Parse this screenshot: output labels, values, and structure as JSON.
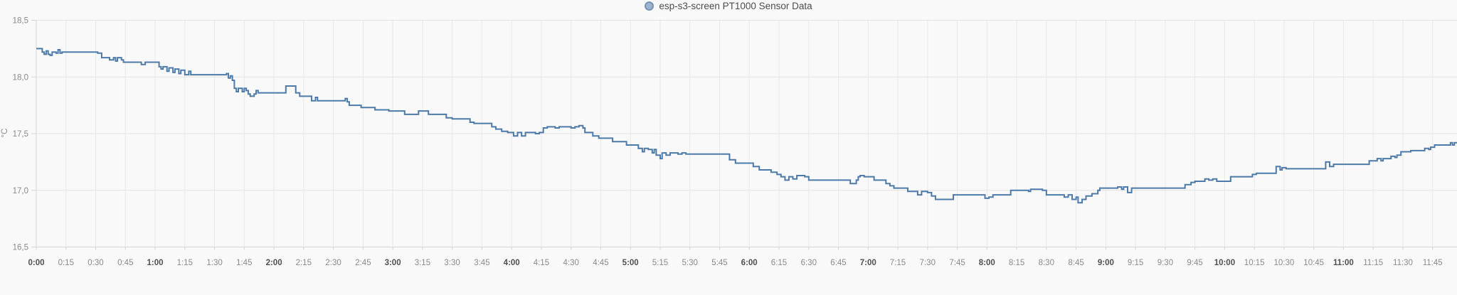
{
  "legend": {
    "series_label": "esp-s3-screen PT1000 Sensor Data",
    "marker_fill": "#9cb4ce",
    "marker_border": "#7694b5"
  },
  "y_axis": {
    "title": "°C",
    "ticks": [
      {
        "label": "18,5",
        "value": 18.5
      },
      {
        "label": "18,0",
        "value": 18.0
      },
      {
        "label": "17,5",
        "value": 17.5
      },
      {
        "label": "17,0",
        "value": 17.0
      },
      {
        "label": "16,5",
        "value": 16.5
      }
    ]
  },
  "x_axis": {
    "ticks": [
      {
        "label": "0:00",
        "m": 0,
        "bold": true
      },
      {
        "label": "0:15",
        "m": 15,
        "bold": false
      },
      {
        "label": "0:30",
        "m": 30,
        "bold": false
      },
      {
        "label": "0:45",
        "m": 45,
        "bold": false
      },
      {
        "label": "1:00",
        "m": 60,
        "bold": true
      },
      {
        "label": "1:15",
        "m": 75,
        "bold": false
      },
      {
        "label": "1:30",
        "m": 90,
        "bold": false
      },
      {
        "label": "1:45",
        "m": 105,
        "bold": false
      },
      {
        "label": "2:00",
        "m": 120,
        "bold": true
      },
      {
        "label": "2:15",
        "m": 135,
        "bold": false
      },
      {
        "label": "2:30",
        "m": 150,
        "bold": false
      },
      {
        "label": "2:45",
        "m": 165,
        "bold": false
      },
      {
        "label": "3:00",
        "m": 180,
        "bold": true
      },
      {
        "label": "3:15",
        "m": 195,
        "bold": false
      },
      {
        "label": "3:30",
        "m": 210,
        "bold": false
      },
      {
        "label": "3:45",
        "m": 225,
        "bold": false
      },
      {
        "label": "4:00",
        "m": 240,
        "bold": true
      },
      {
        "label": "4:15",
        "m": 255,
        "bold": false
      },
      {
        "label": "4:30",
        "m": 270,
        "bold": false
      },
      {
        "label": "4:45",
        "m": 285,
        "bold": false
      },
      {
        "label": "5:00",
        "m": 300,
        "bold": true
      },
      {
        "label": "5:15",
        "m": 315,
        "bold": false
      },
      {
        "label": "5:30",
        "m": 330,
        "bold": false
      },
      {
        "label": "5:45",
        "m": 345,
        "bold": false
      },
      {
        "label": "6:00",
        "m": 360,
        "bold": true
      },
      {
        "label": "6:15",
        "m": 375,
        "bold": false
      },
      {
        "label": "6:30",
        "m": 390,
        "bold": false
      },
      {
        "label": "6:45",
        "m": 405,
        "bold": false
      },
      {
        "label": "7:00",
        "m": 420,
        "bold": true
      },
      {
        "label": "7:15",
        "m": 435,
        "bold": false
      },
      {
        "label": "7:30",
        "m": 450,
        "bold": false
      },
      {
        "label": "7:45",
        "m": 465,
        "bold": false
      },
      {
        "label": "8:00",
        "m": 480,
        "bold": true
      },
      {
        "label": "8:15",
        "m": 495,
        "bold": false
      },
      {
        "label": "8:30",
        "m": 510,
        "bold": false
      },
      {
        "label": "8:45",
        "m": 525,
        "bold": false
      },
      {
        "label": "9:00",
        "m": 540,
        "bold": true
      },
      {
        "label": "9:15",
        "m": 555,
        "bold": false
      },
      {
        "label": "9:30",
        "m": 570,
        "bold": false
      },
      {
        "label": "9:45",
        "m": 585,
        "bold": false
      },
      {
        "label": "10:00",
        "m": 600,
        "bold": true
      },
      {
        "label": "10:15",
        "m": 615,
        "bold": false
      },
      {
        "label": "10:30",
        "m": 630,
        "bold": false
      },
      {
        "label": "10:45",
        "m": 645,
        "bold": false
      },
      {
        "label": "11:00",
        "m": 660,
        "bold": true
      },
      {
        "label": "11:15",
        "m": 675,
        "bold": false
      },
      {
        "label": "11:30",
        "m": 690,
        "bold": false
      },
      {
        "label": "11:45",
        "m": 705,
        "bold": false
      }
    ]
  },
  "colors": {
    "background": "#f9f9f9",
    "line": "#4d7aa8",
    "grid_h": "#e3e3e3",
    "grid_v": "#e9e9e9",
    "axis": "#d6d6d6",
    "tick_mark": "#d6d6d6",
    "minor_label": "#8a8a8a",
    "hour_label": "#4f4f4f"
  },
  "chart_data": {
    "type": "line",
    "step": "after",
    "title": "esp-s3-screen PT1000 Sensor Data",
    "xlabel": "",
    "ylabel": "°C",
    "ylim": [
      16.5,
      18.5
    ],
    "x_unit": "minutes_since_0:00",
    "xlim": [
      0,
      717
    ],
    "grid": true,
    "legend_position": "top-center",
    "series": [
      {
        "name": "esp-s3-screen PT1000 Sensor Data",
        "color": "#4d7aa8",
        "points": [
          [
            0,
            18.25
          ],
          [
            2,
            18.25
          ],
          [
            3,
            18.22
          ],
          [
            4,
            18.2
          ],
          [
            5,
            18.23
          ],
          [
            6,
            18.2
          ],
          [
            7,
            18.19
          ],
          [
            8,
            18.22
          ],
          [
            10,
            18.21
          ],
          [
            11,
            18.24
          ],
          [
            12,
            18.21
          ],
          [
            13,
            18.22
          ],
          [
            30,
            18.22
          ],
          [
            31,
            18.21
          ],
          [
            33,
            18.17
          ],
          [
            36,
            18.17
          ],
          [
            37,
            18.15
          ],
          [
            39,
            18.17
          ],
          [
            40,
            18.14
          ],
          [
            41,
            18.17
          ],
          [
            43,
            18.15
          ],
          [
            44,
            18.13
          ],
          [
            52,
            18.13
          ],
          [
            53,
            18.11
          ],
          [
            55,
            18.13
          ],
          [
            61,
            18.13
          ],
          [
            62,
            18.09
          ],
          [
            63,
            18.07
          ],
          [
            64,
            18.09
          ],
          [
            66,
            18.05
          ],
          [
            67,
            18.08
          ],
          [
            69,
            18.04
          ],
          [
            70,
            18.07
          ],
          [
            72,
            18.03
          ],
          [
            73,
            18.06
          ],
          [
            75,
            18.02
          ],
          [
            77,
            18.05
          ],
          [
            78,
            18.02
          ],
          [
            95,
            18.02
          ],
          [
            96,
            18.03
          ],
          [
            97,
            17.99
          ],
          [
            98,
            18.01
          ],
          [
            99,
            17.97
          ],
          [
            100,
            17.9
          ],
          [
            101,
            17.87
          ],
          [
            102,
            17.9
          ],
          [
            104,
            17.87
          ],
          [
            105,
            17.9
          ],
          [
            106,
            17.88
          ],
          [
            107,
            17.85
          ],
          [
            108,
            17.83
          ],
          [
            110,
            17.85
          ],
          [
            111,
            17.88
          ],
          [
            112,
            17.86
          ],
          [
            125,
            17.86
          ],
          [
            126,
            17.92
          ],
          [
            130,
            17.92
          ],
          [
            131,
            17.86
          ],
          [
            133,
            17.83
          ],
          [
            138,
            17.83
          ],
          [
            139,
            17.79
          ],
          [
            141,
            17.82
          ],
          [
            142,
            17.79
          ],
          [
            155,
            17.79
          ],
          [
            156,
            17.81
          ],
          [
            157,
            17.78
          ],
          [
            158,
            17.75
          ],
          [
            163,
            17.75
          ],
          [
            164,
            17.73
          ],
          [
            170,
            17.73
          ],
          [
            171,
            17.71
          ],
          [
            178,
            17.7
          ],
          [
            185,
            17.7
          ],
          [
            186,
            17.67
          ],
          [
            192,
            17.67
          ],
          [
            193,
            17.7
          ],
          [
            197,
            17.7
          ],
          [
            198,
            17.67
          ],
          [
            206,
            17.67
          ],
          [
            207,
            17.64
          ],
          [
            210,
            17.63
          ],
          [
            218,
            17.63
          ],
          [
            219,
            17.6
          ],
          [
            221,
            17.59
          ],
          [
            229,
            17.59
          ],
          [
            230,
            17.56
          ],
          [
            232,
            17.54
          ],
          [
            235,
            17.52
          ],
          [
            238,
            17.51
          ],
          [
            240,
            17.51
          ],
          [
            241,
            17.48
          ],
          [
            243,
            17.51
          ],
          [
            245,
            17.48
          ],
          [
            247,
            17.51
          ],
          [
            252,
            17.5
          ],
          [
            254,
            17.51
          ],
          [
            256,
            17.55
          ],
          [
            258,
            17.56
          ],
          [
            262,
            17.55
          ],
          [
            264,
            17.56
          ],
          [
            270,
            17.55
          ],
          [
            272,
            17.56
          ],
          [
            274,
            17.57
          ],
          [
            276,
            17.55
          ],
          [
            277,
            17.51
          ],
          [
            280,
            17.51
          ],
          [
            281,
            17.48
          ],
          [
            284,
            17.46
          ],
          [
            290,
            17.46
          ],
          [
            291,
            17.43
          ],
          [
            297,
            17.43
          ],
          [
            298,
            17.4
          ],
          [
            303,
            17.4
          ],
          [
            304,
            17.37
          ],
          [
            306,
            17.34
          ],
          [
            307,
            17.37
          ],
          [
            309,
            17.36
          ],
          [
            311,
            17.33
          ],
          [
            312,
            17.36
          ],
          [
            313,
            17.31
          ],
          [
            315,
            17.28
          ],
          [
            316,
            17.33
          ],
          [
            318,
            17.31
          ],
          [
            320,
            17.33
          ],
          [
            324,
            17.32
          ],
          [
            326,
            17.33
          ],
          [
            328,
            17.32
          ],
          [
            349,
            17.32
          ],
          [
            350,
            17.27
          ],
          [
            353,
            17.24
          ],
          [
            360,
            17.24
          ],
          [
            362,
            17.21
          ],
          [
            365,
            17.18
          ],
          [
            369,
            17.18
          ],
          [
            371,
            17.16
          ],
          [
            374,
            17.14
          ],
          [
            376,
            17.12
          ],
          [
            378,
            17.09
          ],
          [
            380,
            17.12
          ],
          [
            382,
            17.1
          ],
          [
            384,
            17.13
          ],
          [
            388,
            17.12
          ],
          [
            390,
            17.09
          ],
          [
            409,
            17.09
          ],
          [
            411,
            17.06
          ],
          [
            413,
            17.06
          ],
          [
            414,
            17.09
          ],
          [
            415,
            17.12
          ],
          [
            416,
            17.13
          ],
          [
            418,
            17.12
          ],
          [
            421,
            17.12
          ],
          [
            423,
            17.09
          ],
          [
            427,
            17.09
          ],
          [
            429,
            17.06
          ],
          [
            431,
            17.04
          ],
          [
            433,
            17.02
          ],
          [
            438,
            17.02
          ],
          [
            440,
            16.99
          ],
          [
            444,
            16.99
          ],
          [
            445,
            16.96
          ],
          [
            447,
            16.99
          ],
          [
            450,
            16.98
          ],
          [
            452,
            16.95
          ],
          [
            454,
            16.92
          ],
          [
            461,
            16.92
          ],
          [
            463,
            16.96
          ],
          [
            477,
            16.96
          ],
          [
            479,
            16.93
          ],
          [
            481,
            16.94
          ],
          [
            483,
            16.96
          ],
          [
            491,
            16.96
          ],
          [
            492,
            17.0
          ],
          [
            500,
            17.0
          ],
          [
            501,
            16.99
          ],
          [
            502,
            17.01
          ],
          [
            508,
            17.0
          ],
          [
            510,
            16.96
          ],
          [
            517,
            16.96
          ],
          [
            519,
            16.94
          ],
          [
            521,
            16.96
          ],
          [
            523,
            16.92
          ],
          [
            525,
            16.94
          ],
          [
            526,
            16.89
          ],
          [
            528,
            16.92
          ],
          [
            530,
            16.95
          ],
          [
            533,
            16.97
          ],
          [
            536,
            17.0
          ],
          [
            537,
            17.02
          ],
          [
            545,
            17.02
          ],
          [
            546,
            17.03
          ],
          [
            548,
            17.01
          ],
          [
            549,
            17.03
          ],
          [
            551,
            16.98
          ],
          [
            553,
            17.02
          ],
          [
            578,
            17.02
          ],
          [
            580,
            17.05
          ],
          [
            583,
            17.07
          ],
          [
            585,
            17.08
          ],
          [
            589,
            17.08
          ],
          [
            590,
            17.1
          ],
          [
            592,
            17.09
          ],
          [
            594,
            17.1
          ],
          [
            596,
            17.08
          ],
          [
            602,
            17.08
          ],
          [
            603,
            17.12
          ],
          [
            612,
            17.12
          ],
          [
            614,
            17.14
          ],
          [
            616,
            17.15
          ],
          [
            625,
            17.15
          ],
          [
            626,
            17.21
          ],
          [
            628,
            17.18
          ],
          [
            629,
            17.2
          ],
          [
            631,
            17.19
          ],
          [
            649,
            17.19
          ],
          [
            651,
            17.25
          ],
          [
            653,
            17.21
          ],
          [
            655,
            17.23
          ],
          [
            671,
            17.23
          ],
          [
            673,
            17.26
          ],
          [
            676,
            17.26
          ],
          [
            677,
            17.28
          ],
          [
            679,
            17.26
          ],
          [
            680,
            17.28
          ],
          [
            683,
            17.28
          ],
          [
            684,
            17.3
          ],
          [
            686,
            17.29
          ],
          [
            687,
            17.31
          ],
          [
            689,
            17.34
          ],
          [
            692,
            17.34
          ],
          [
            694,
            17.35
          ],
          [
            700,
            17.35
          ],
          [
            701,
            17.37
          ],
          [
            703,
            17.36
          ],
          [
            704,
            17.38
          ],
          [
            706,
            17.4
          ],
          [
            713,
            17.4
          ],
          [
            714,
            17.42
          ],
          [
            715,
            17.4
          ],
          [
            716,
            17.42
          ],
          [
            717,
            17.42
          ]
        ]
      }
    ]
  }
}
